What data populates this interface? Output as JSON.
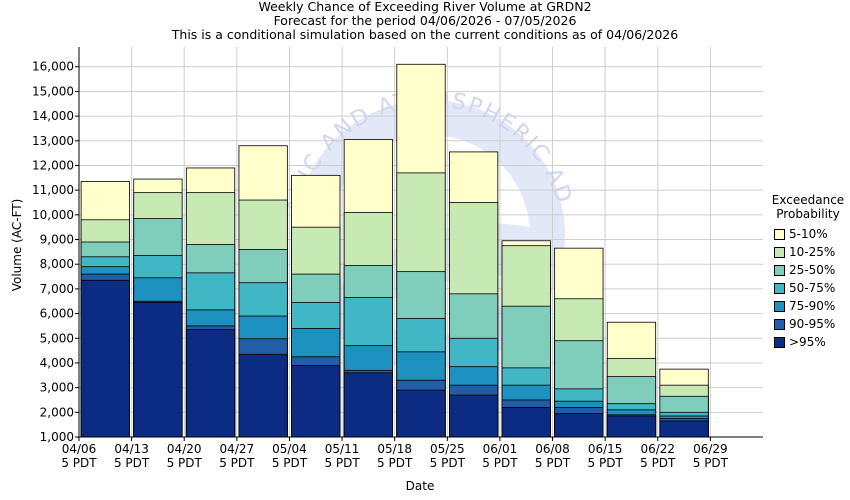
{
  "chart_data": {
    "type": "bar",
    "stacked": true,
    "title": "Weekly Chance of Exceeding River Volume at GRDN2",
    "subtitle": "Forecast for the period 04/06/2026 - 07/05/2026",
    "subtitle2": "This is a conditional simulation based on the current conditions as of 04/06/2026",
    "xlabel": "Date",
    "ylabel": "Volume (AC-FT)",
    "ylim": [
      1000,
      16800
    ],
    "yticks": [
      1000,
      2000,
      3000,
      4000,
      5000,
      6000,
      7000,
      8000,
      9000,
      10000,
      11000,
      12000,
      13000,
      14000,
      15000,
      16000
    ],
    "ytick_labels": [
      "1,000",
      "2,000",
      "3,000",
      "4,000",
      "5,000",
      "6,000",
      "7,000",
      "8,000",
      "9,000",
      "10,000",
      "11,000",
      "12,000",
      "13,000",
      "14,000",
      "15,000",
      "16,000"
    ],
    "categories": [
      {
        "date": "04/06",
        "line2": "5 PDT"
      },
      {
        "date": "04/13",
        "line2": "5 PDT"
      },
      {
        "date": "04/20",
        "line2": "5 PDT"
      },
      {
        "date": "04/27",
        "line2": "5 PDT"
      },
      {
        "date": "05/04",
        "line2": "5 PDT"
      },
      {
        "date": "05/11",
        "line2": "5 PDT"
      },
      {
        "date": "05/18",
        "line2": "5 PDT"
      },
      {
        "date": "05/25",
        "line2": "5 PDT"
      },
      {
        "date": "06/01",
        "line2": "5 PDT"
      },
      {
        "date": "06/08",
        "line2": "5 PDT"
      },
      {
        "date": "06/15",
        "line2": "5 PDT"
      },
      {
        "date": "06/22",
        "line2": "5 PDT"
      },
      {
        "date": "06/29",
        "line2": "5 PDT"
      }
    ],
    "legend_title": [
      "Exceedance",
      "Probability"
    ],
    "legend_position": "right",
    "series": [
      {
        "name": "5-10%",
        "color": "#ffffcc",
        "tops": [
          11350,
          11450,
          11900,
          12800,
          11600,
          13050,
          16100,
          12550,
          8950,
          8650,
          5650,
          3750
        ]
      },
      {
        "name": "10-25%",
        "color": "#c7e9b4",
        "tops": [
          9800,
          10900,
          10900,
          10600,
          9500,
          10100,
          11700,
          10500,
          8750,
          6600,
          4180,
          3100
        ]
      },
      {
        "name": "25-50%",
        "color": "#7fcdbb",
        "tops": [
          8900,
          9850,
          8800,
          8600,
          7600,
          7950,
          7700,
          6800,
          6300,
          4900,
          3450,
          2650
        ]
      },
      {
        "name": "50-75%",
        "color": "#41b6c4",
        "tops": [
          8300,
          8350,
          7650,
          7250,
          6450,
          6650,
          5800,
          5000,
          3800,
          2950,
          2350,
          2000
        ]
      },
      {
        "name": "75-90%",
        "color": "#1d91c0",
        "tops": [
          7900,
          7450,
          6150,
          5900,
          5400,
          4700,
          4450,
          3850,
          3100,
          2450,
          2100,
          1850
        ]
      },
      {
        "name": "90-95%",
        "color": "#225ea8",
        "tops": [
          7600,
          6500,
          5500,
          4980,
          4250,
          3700,
          3300,
          3100,
          2500,
          2200,
          1900,
          1750
        ]
      },
      {
        "name": ">95%",
        "color": "#0c2c84",
        "tops": [
          7350,
          6450,
          5350,
          4350,
          3900,
          3600,
          2900,
          2700,
          2200,
          1950,
          1850,
          1650
        ]
      }
    ],
    "grid": true,
    "watermark_colors": {
      "circle": "#e1e6f7",
      "text": "#cfd5ee"
    }
  }
}
